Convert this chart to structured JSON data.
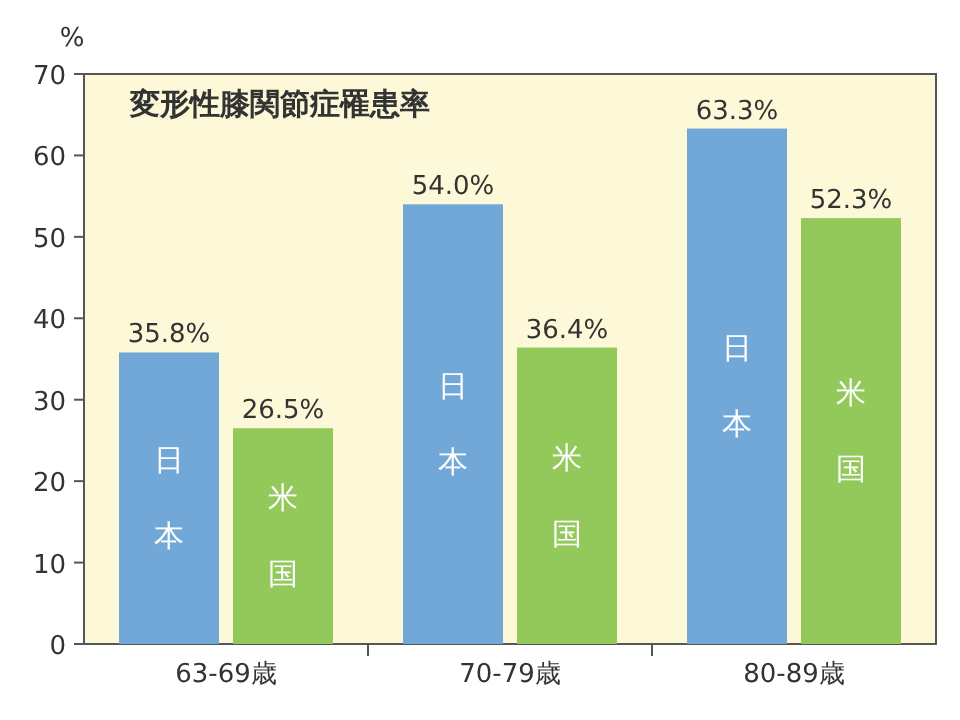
{
  "chart_data": {
    "type": "bar",
    "title": "変形性膝関節症罹患率",
    "ylabel": "%",
    "categories": [
      "63-69歳",
      "70-79歳",
      "80-89歳"
    ],
    "series": [
      {
        "name": "日本",
        "color": "#72a8d8",
        "values": [
          35.8,
          54.0,
          63.3
        ],
        "value_labels": [
          "35.8%",
          "54.0%",
          "63.3%"
        ]
      },
      {
        "name": "米国",
        "color": "#92c95a",
        "values": [
          26.5,
          36.4,
          52.3
        ],
        "value_labels": [
          "26.5%",
          "36.4%",
          "52.3%"
        ]
      }
    ],
    "ylim": [
      0,
      70
    ],
    "yticks": [
      0,
      10,
      20,
      30,
      40,
      50,
      60,
      70
    ]
  }
}
